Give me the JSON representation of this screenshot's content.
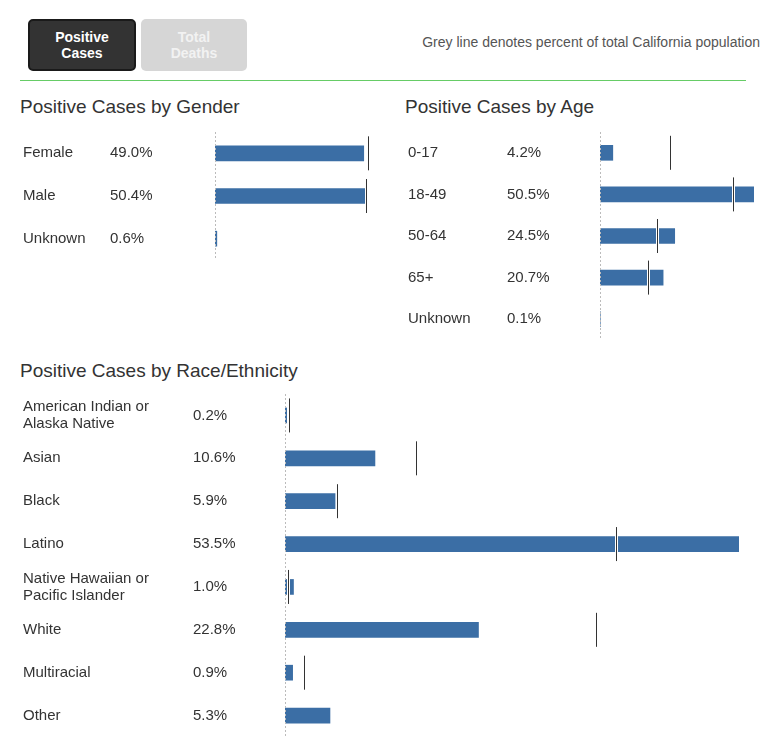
{
  "header": {
    "buttons": [
      "Positive Cases",
      "Total Deaths"
    ],
    "active": "Positive Cases",
    "note": "Grey line denotes percent of total California population"
  },
  "chart_data": [
    {
      "type": "bar",
      "title": "Positive Cases by Gender",
      "orientation": "horizontal",
      "categories": [
        "Female",
        "Male",
        "Unknown"
      ],
      "values": [
        49.0,
        50.4,
        0.6
      ],
      "value_labels": [
        "49.0%",
        "50.4%",
        "0.6%"
      ],
      "population": [
        50.3,
        49.7,
        null
      ],
      "color": "#3b6ea5",
      "xlim": [
        0,
        50.4
      ],
      "tick_labels": false,
      "data_labels": true,
      "grid": false
    },
    {
      "type": "bar",
      "title": "Positive Cases by Age",
      "orientation": "horizontal",
      "categories": [
        "0-17",
        "18-49",
        "50-64",
        "65+",
        "Unknown"
      ],
      "values": [
        4.2,
        50.5,
        24.5,
        20.7,
        0.1
      ],
      "value_labels": [
        "4.2%",
        "50.5%",
        "24.5%",
        "20.7%",
        "0.1%"
      ],
      "population": [
        23.0,
        43.6,
        18.7,
        15.7,
        null
      ],
      "color": "#3b6ea5",
      "xlim": [
        0,
        50.5
      ],
      "tick_labels": false,
      "data_labels": true,
      "grid": false
    },
    {
      "type": "bar",
      "title": "Positive Cases by Race/Ethnicity",
      "orientation": "horizontal",
      "categories": [
        "American Indian or Alaska Native",
        "Asian",
        "Black",
        "Latino",
        "Native Hawaiian or Pacific Islander",
        "White",
        "Multiracial",
        "Other"
      ],
      "values": [
        0.2,
        10.6,
        5.9,
        53.5,
        1.0,
        22.8,
        0.9,
        5.3
      ],
      "value_labels": [
        "0.2%",
        "10.6%",
        "5.9%",
        "53.5%",
        "1.0%",
        "22.8%",
        "0.9%",
        "5.3%"
      ],
      "population": [
        0.5,
        15.4,
        6.1,
        39.0,
        0.3,
        36.6,
        2.2,
        null
      ],
      "color": "#3b6ea5",
      "xlim": [
        0,
        53.5
      ],
      "tick_labels": false,
      "data_labels": true,
      "grid": false
    }
  ]
}
